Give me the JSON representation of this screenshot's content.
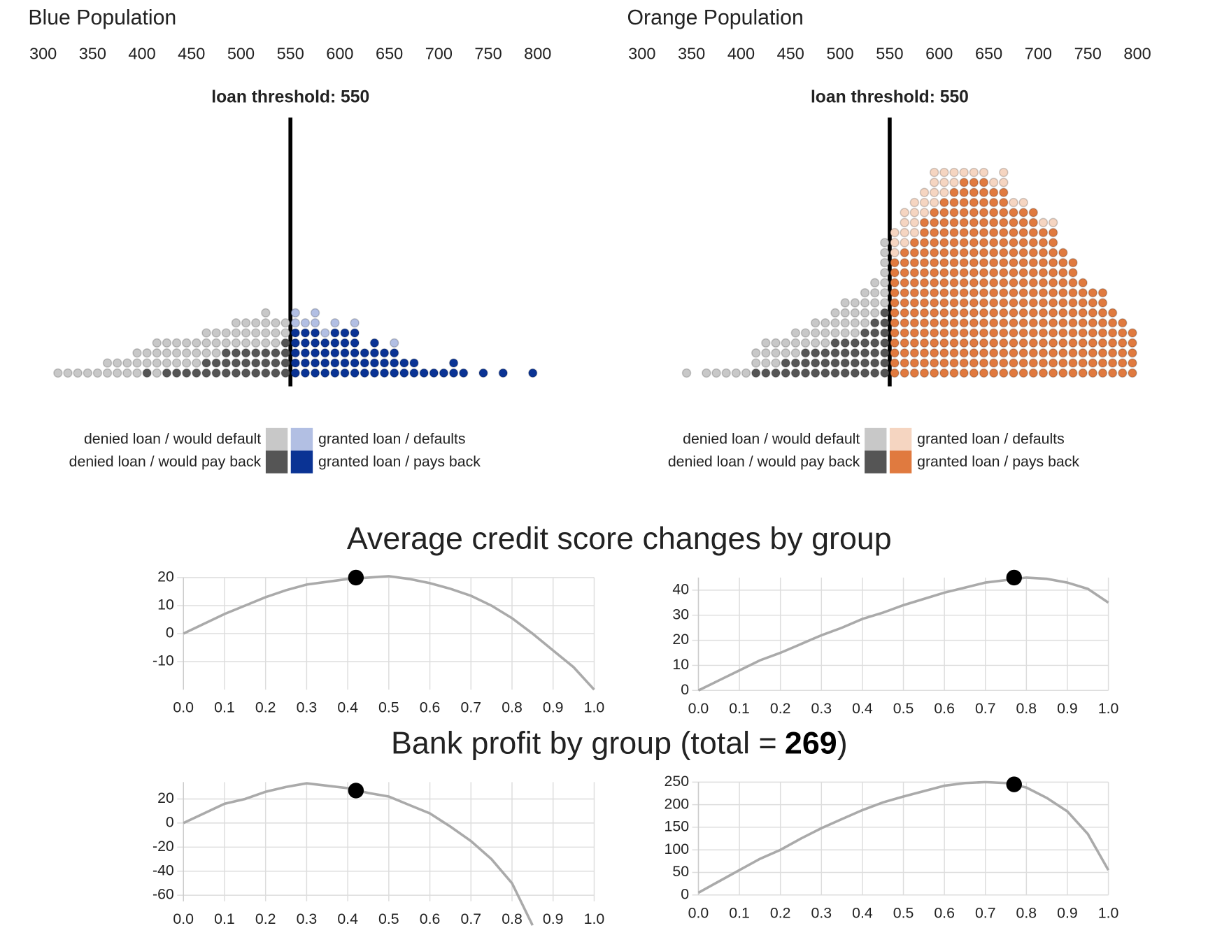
{
  "chart_data": [
    {
      "type": "dotplot",
      "title": "Blue Population",
      "xlim": [
        300,
        800
      ],
      "xticks": [
        300,
        350,
        400,
        450,
        500,
        550,
        600,
        650,
        700,
        750,
        800
      ],
      "threshold": 550,
      "threshold_label": "loan threshold: 550",
      "x": [
        315,
        325,
        335,
        345,
        355,
        365,
        375,
        385,
        395,
        405,
        415,
        425,
        435,
        445,
        455,
        465,
        475,
        485,
        495,
        505,
        515,
        525,
        535,
        545,
        555,
        565,
        575,
        585,
        595,
        605,
        615,
        625,
        635,
        645,
        655,
        665,
        675,
        685,
        695,
        705,
        715,
        725,
        735,
        745,
        755,
        765,
        775,
        785,
        795
      ],
      "series": [
        {
          "name": "denied loan / would default",
          "color": "#c8c8c8",
          "values": [
            1,
            1,
            1,
            1,
            1,
            2,
            2,
            2,
            3,
            2,
            4,
            3,
            3,
            3,
            3,
            3,
            3,
            2,
            3,
            3,
            3,
            4,
            3,
            2,
            0,
            0,
            0,
            0,
            0,
            0,
            0,
            0,
            0,
            0,
            0,
            0,
            0,
            0,
            0,
            0,
            0,
            0,
            0,
            0,
            0,
            0,
            0,
            0,
            0
          ]
        },
        {
          "name": "denied loan / would pay back",
          "color": "#555555",
          "values": [
            0,
            0,
            0,
            0,
            0,
            0,
            0,
            0,
            0,
            1,
            0,
            1,
            1,
            1,
            1,
            2,
            2,
            3,
            3,
            3,
            3,
            3,
            3,
            4,
            0,
            0,
            0,
            0,
            0,
            0,
            0,
            0,
            0,
            0,
            0,
            0,
            0,
            0,
            0,
            0,
            0,
            0,
            0,
            0,
            0,
            0,
            0,
            0,
            0
          ]
        },
        {
          "name": "granted loan / defaults",
          "color": "#b2bfe3",
          "values": [
            0,
            0,
            0,
            0,
            0,
            0,
            0,
            0,
            0,
            0,
            0,
            0,
            0,
            0,
            0,
            0,
            0,
            0,
            0,
            0,
            0,
            0,
            0,
            0,
            2,
            1,
            2,
            1,
            1,
            0,
            1,
            0,
            0,
            0,
            1,
            0,
            0,
            0,
            0,
            0,
            0,
            0,
            0,
            0,
            0,
            0,
            0,
            0,
            0
          ]
        },
        {
          "name": "granted loan / pays back",
          "color": "#0a3394",
          "values": [
            0,
            0,
            0,
            0,
            0,
            0,
            0,
            0,
            0,
            0,
            0,
            0,
            0,
            0,
            0,
            0,
            0,
            0,
            0,
            0,
            0,
            0,
            0,
            0,
            5,
            5,
            5,
            4,
            5,
            5,
            5,
            3,
            4,
            3,
            3,
            2,
            2,
            1,
            1,
            1,
            2,
            1,
            0,
            1,
            0,
            1,
            0,
            0,
            1
          ]
        }
      ]
    },
    {
      "type": "dotplot",
      "title": "Orange Population",
      "xlim": [
        300,
        800
      ],
      "xticks": [
        300,
        350,
        400,
        450,
        500,
        550,
        600,
        650,
        700,
        750,
        800
      ],
      "threshold": 550,
      "threshold_label": "loan threshold: 550",
      "x": [
        315,
        325,
        335,
        345,
        355,
        365,
        375,
        385,
        395,
        405,
        415,
        425,
        435,
        445,
        455,
        465,
        475,
        485,
        495,
        505,
        515,
        525,
        535,
        545,
        555,
        565,
        575,
        585,
        595,
        605,
        615,
        625,
        635,
        645,
        655,
        665,
        675,
        685,
        695,
        705,
        715,
        725,
        735,
        745,
        755,
        765,
        775,
        785,
        795
      ],
      "series": [
        {
          "name": "denied loan / would default",
          "color": "#c8c8c8",
          "values": [
            0,
            0,
            0,
            1,
            0,
            1,
            1,
            1,
            1,
            1,
            2,
            3,
            3,
            2,
            3,
            2,
            3,
            3,
            3,
            4,
            4,
            4,
            4,
            7,
            0,
            0,
            0,
            0,
            0,
            0,
            0,
            0,
            0,
            0,
            0,
            0,
            0,
            0,
            0,
            0,
            0,
            0,
            0,
            0,
            0,
            0,
            0,
            0,
            0
          ]
        },
        {
          "name": "denied loan / would pay back",
          "color": "#555555",
          "values": [
            0,
            0,
            0,
            0,
            0,
            0,
            0,
            0,
            0,
            0,
            1,
            1,
            1,
            2,
            2,
            3,
            3,
            3,
            4,
            4,
            4,
            5,
            6,
            7,
            0,
            0,
            0,
            0,
            0,
            0,
            0,
            0,
            0,
            0,
            0,
            0,
            0,
            0,
            0,
            0,
            0,
            0,
            0,
            0,
            0,
            0,
            0,
            0,
            0
          ]
        },
        {
          "name": "granted loan / defaults",
          "color": "#f5d5c1",
          "values": [
            0,
            0,
            0,
            0,
            0,
            0,
            0,
            0,
            0,
            0,
            0,
            0,
            0,
            0,
            0,
            0,
            0,
            0,
            0,
            0,
            0,
            0,
            0,
            0,
            3,
            4,
            4,
            3,
            4,
            3,
            2,
            1,
            1,
            1,
            1,
            2,
            1,
            1,
            0,
            1,
            1,
            0,
            0,
            0,
            0,
            0,
            0,
            0,
            0
          ]
        },
        {
          "name": "granted loan / pays back",
          "color": "#e07a3f",
          "values": [
            0,
            0,
            0,
            0,
            0,
            0,
            0,
            0,
            0,
            0,
            0,
            0,
            0,
            0,
            0,
            0,
            0,
            0,
            0,
            0,
            0,
            0,
            0,
            0,
            12,
            13,
            14,
            16,
            17,
            18,
            19,
            20,
            20,
            20,
            19,
            19,
            17,
            17,
            17,
            15,
            15,
            13,
            12,
            10,
            9,
            9,
            7,
            6,
            5
          ]
        }
      ]
    },
    {
      "type": "line",
      "xlim": [
        0,
        1
      ],
      "ylim": [
        -20,
        20
      ],
      "grid": true,
      "color": "#aaaaaa",
      "xticks": [
        {
          "value": 0,
          "label": "0.0"
        },
        0.1,
        0.2,
        0.3,
        0.4,
        0.5,
        0.6,
        0.7,
        0.8,
        0.9,
        {
          "value": 1,
          "label": "1.0"
        }
      ],
      "yticks": [
        -10,
        0,
        10,
        20
      ],
      "x": [
        0,
        0.05,
        0.1,
        0.15,
        0.2,
        0.25,
        0.3,
        0.35,
        0.4,
        0.45,
        0.5,
        0.55,
        0.6,
        0.65,
        0.7,
        0.75,
        0.8,
        0.85,
        0.9,
        0.95,
        1
      ],
      "values": [
        0,
        3.5,
        7,
        10,
        13,
        15.5,
        17.5,
        18.5,
        19.5,
        20,
        20.5,
        19.5,
        18,
        16,
        13.5,
        10,
        5.5,
        0,
        -6,
        -12,
        -20
      ],
      "marker": {
        "x": 0.42,
        "y": 20
      }
    },
    {
      "type": "line",
      "xlim": [
        0,
        1
      ],
      "ylim": [
        0,
        45
      ],
      "grid": true,
      "color": "#aaaaaa",
      "xticks": [
        {
          "value": 0,
          "label": "0.0"
        },
        0.1,
        0.2,
        0.3,
        0.4,
        0.5,
        0.6,
        0.7,
        0.8,
        0.9,
        {
          "value": 1,
          "label": "1.0"
        }
      ],
      "yticks": [
        0,
        10,
        20,
        30,
        40
      ],
      "x": [
        0,
        0.05,
        0.1,
        0.15,
        0.2,
        0.25,
        0.3,
        0.35,
        0.4,
        0.45,
        0.5,
        0.55,
        0.6,
        0.65,
        0.7,
        0.75,
        0.8,
        0.85,
        0.9,
        0.95,
        1
      ],
      "values": [
        0,
        4,
        8,
        12,
        15,
        18.5,
        22,
        25,
        28.5,
        31,
        34,
        36.5,
        39,
        41,
        43,
        44,
        45,
        44.5,
        43,
        40.5,
        35
      ],
      "marker": {
        "x": 0.77,
        "y": 45
      }
    },
    {
      "type": "line",
      "xlim": [
        0,
        1
      ],
      "ylim": [
        -65,
        34
      ],
      "grid": true,
      "color": "#aaaaaa",
      "xticks": [
        {
          "value": 0,
          "label": "0.0"
        },
        0.1,
        0.2,
        0.3,
        0.4,
        0.5,
        0.6,
        0.7,
        0.8,
        0.9,
        {
          "value": 1,
          "label": "1.0"
        }
      ],
      "yticks": [
        -60,
        -40,
        -20,
        0,
        20
      ],
      "x": [
        0,
        0.05,
        0.1,
        0.15,
        0.2,
        0.25,
        0.3,
        0.35,
        0.4,
        0.45,
        0.5,
        0.55,
        0.6,
        0.65,
        0.7,
        0.75,
        0.8,
        0.85,
        0.9,
        0.95,
        1
      ],
      "values": [
        0,
        8,
        16,
        20,
        26,
        30,
        33,
        31,
        29,
        25,
        22,
        15,
        8,
        -3,
        -15,
        -30,
        -50,
        -85,
        null,
        null,
        null
      ],
      "marker": {
        "x": 0.42,
        "y": 27
      }
    },
    {
      "type": "line",
      "xlim": [
        0,
        1
      ],
      "ylim": [
        0,
        250
      ],
      "grid": true,
      "color": "#aaaaaa",
      "xticks": [
        {
          "value": 0,
          "label": "0.0"
        },
        0.1,
        0.2,
        0.3,
        0.4,
        0.5,
        0.6,
        0.7,
        0.8,
        0.9,
        {
          "value": 1,
          "label": "1.0"
        }
      ],
      "yticks": [
        0,
        50,
        100,
        150,
        200,
        250
      ],
      "x": [
        0,
        0.05,
        0.1,
        0.15,
        0.2,
        0.25,
        0.3,
        0.35,
        0.4,
        0.45,
        0.5,
        0.55,
        0.6,
        0.65,
        0.7,
        0.75,
        0.8,
        0.85,
        0.9,
        0.95,
        1
      ],
      "values": [
        5,
        30,
        55,
        80,
        100,
        125,
        148,
        168,
        188,
        205,
        218,
        230,
        242,
        248,
        250,
        248,
        238,
        215,
        185,
        135,
        55
      ],
      "marker": {
        "x": 0.77,
        "y": 245
      }
    }
  ],
  "credit_heading": "Average credit score changes by group",
  "profit_heading": {
    "text_before": "Bank profit by group (total =",
    "total": 269,
    "text_after": ")"
  }
}
